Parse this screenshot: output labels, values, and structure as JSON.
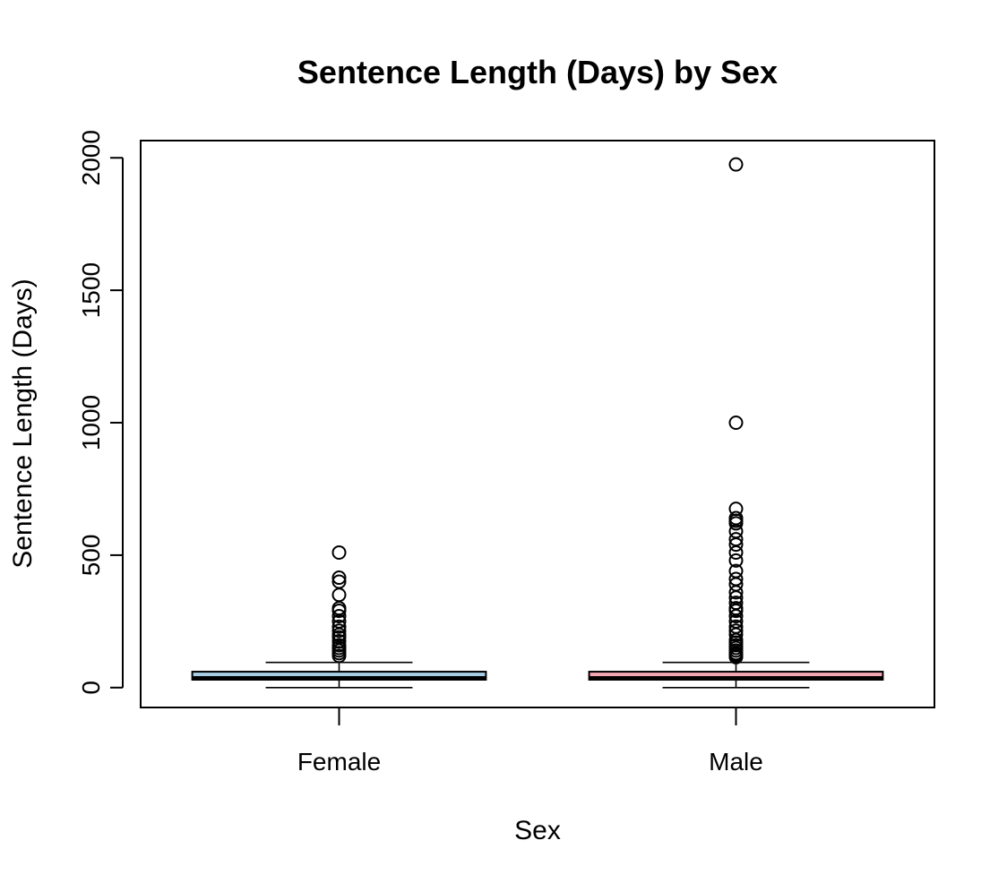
{
  "chart_data": {
    "type": "boxplot",
    "title": "Sentence Length (Days) by Sex",
    "xlabel": "Sex",
    "ylabel": "Sentence Length (Days)",
    "ylim": [
      -75,
      2065
    ],
    "yticks": [
      0,
      500,
      1000,
      1500,
      2000
    ],
    "categories": [
      "Female",
      "Male"
    ],
    "series": [
      {
        "category": "Female",
        "color": "#a6cee3",
        "whisker_low": 0,
        "q1": 30,
        "median": 35,
        "q3": 60,
        "whisker_high": 95,
        "outliers": [
          120,
          130,
          140,
          150,
          160,
          175,
          190,
          200,
          215,
          230,
          250,
          270,
          290,
          300,
          350,
          400,
          415,
          510
        ]
      },
      {
        "category": "Male",
        "color": "#f4a6b5",
        "whisker_low": 0,
        "q1": 30,
        "median": 35,
        "q3": 60,
        "whisker_high": 95,
        "outliers": [
          115,
          120,
          125,
          130,
          140,
          150,
          160,
          170,
          180,
          200,
          215,
          230,
          250,
          270,
          290,
          300,
          320,
          340,
          360,
          390,
          410,
          440,
          480,
          510,
          540,
          560,
          590,
          620,
          630,
          640,
          675,
          1000,
          1975
        ]
      }
    ]
  }
}
